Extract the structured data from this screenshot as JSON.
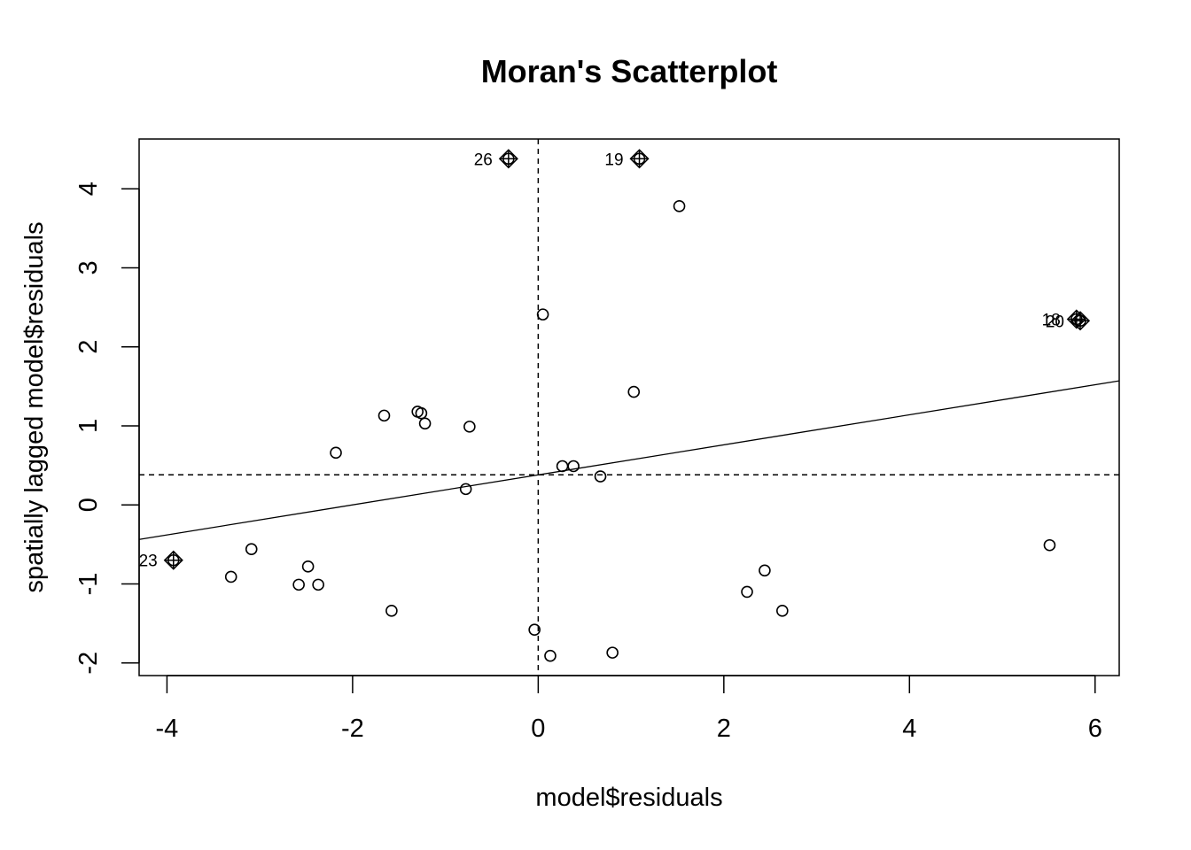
{
  "chart_data": {
    "type": "scatter",
    "title": "Moran's Scatterplot",
    "xlabel": "model$residuals",
    "ylabel": "spatially lagged model$residuals",
    "xlim": [
      -4.3,
      6.26
    ],
    "ylim": [
      -2.16,
      4.63
    ],
    "x_ticks": [
      -4,
      -2,
      0,
      2,
      4,
      6
    ],
    "x_tick_labels": [
      "-4",
      "-2",
      "0",
      "2",
      "4",
      "6"
    ],
    "y_ticks": [
      -2,
      -1,
      0,
      1,
      2,
      3,
      4
    ],
    "y_tick_labels": [
      "-2",
      "-1",
      "0",
      "1",
      "2",
      "3",
      "4"
    ],
    "mean_x": 0.0,
    "mean_y": 0.38,
    "regression_line": {
      "intercept": 0.38,
      "slope": 0.19
    },
    "grid": false,
    "legend": "none",
    "points": [
      {
        "x": 0.05,
        "y": 2.41
      },
      {
        "x": 1.52,
        "y": 3.78
      },
      {
        "x": 1.03,
        "y": 1.43
      },
      {
        "x": -1.66,
        "y": 1.13
      },
      {
        "x": -1.3,
        "y": 1.18
      },
      {
        "x": -1.26,
        "y": 1.16
      },
      {
        "x": -1.22,
        "y": 1.03
      },
      {
        "x": -0.74,
        "y": 0.99
      },
      {
        "x": -2.18,
        "y": 0.66
      },
      {
        "x": 0.26,
        "y": 0.49
      },
      {
        "x": 0.38,
        "y": 0.49
      },
      {
        "x": 0.67,
        "y": 0.36
      },
      {
        "x": -0.78,
        "y": 0.2
      },
      {
        "x": -3.31,
        "y": -0.91
      },
      {
        "x": -3.09,
        "y": -0.56
      },
      {
        "x": -2.48,
        "y": -0.78
      },
      {
        "x": -2.58,
        "y": -1.01
      },
      {
        "x": -2.37,
        "y": -1.01
      },
      {
        "x": -1.58,
        "y": -1.34
      },
      {
        "x": -0.04,
        "y": -1.58
      },
      {
        "x": 0.13,
        "y": -1.91
      },
      {
        "x": 0.8,
        "y": -1.87
      },
      {
        "x": 2.25,
        "y": -1.1
      },
      {
        "x": 2.44,
        "y": -0.83
      },
      {
        "x": 2.63,
        "y": -1.34
      },
      {
        "x": 5.51,
        "y": -0.51
      }
    ],
    "influential_points": [
      {
        "label": "26",
        "x": -0.32,
        "y": 4.38
      },
      {
        "label": "19",
        "x": 1.09,
        "y": 4.38
      },
      {
        "label": "18",
        "x": 5.8,
        "y": 2.35
      },
      {
        "label": "20",
        "x": 5.84,
        "y": 2.33
      },
      {
        "label": "23",
        "x": -3.93,
        "y": -0.7
      }
    ]
  }
}
